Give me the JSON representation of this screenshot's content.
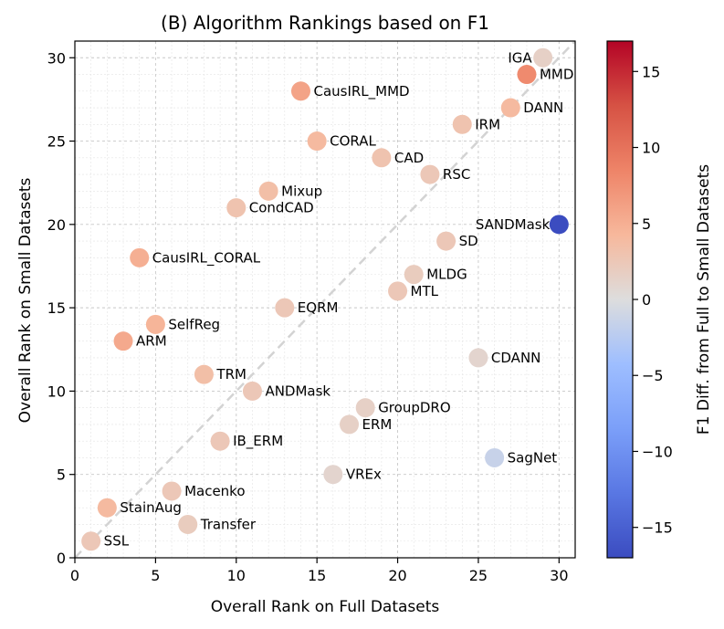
{
  "chart_data": {
    "type": "scatter",
    "title": "(B) Algorithm Rankings based on F1",
    "xlabel": "Overall Rank on Full Datasets",
    "ylabel": "Overall Rank on Small Datasets",
    "colorbar_label": "F1 Diff. from Full to Small Datasets",
    "xlim": [
      0,
      31
    ],
    "ylim": [
      0,
      31
    ],
    "xticks": [
      0,
      5,
      10,
      15,
      20,
      25,
      30
    ],
    "yticks": [
      0,
      5,
      10,
      15,
      20,
      25,
      30
    ],
    "colorbar_range": [
      -17,
      17
    ],
    "colorbar_ticks": [
      -15,
      -10,
      -5,
      0,
      5,
      10,
      15
    ],
    "colorbar_tick_labels": [
      "−15",
      "−10",
      "−5",
      "0",
      "5",
      "10",
      "15"
    ],
    "reference_line": "y = x (dashed, light gray)",
    "grid": true,
    "points": [
      {
        "name": "IGA",
        "x": 29,
        "y": 30,
        "diff": 1.5,
        "label_side": "left"
      },
      {
        "name": "MMD",
        "x": 28,
        "y": 29,
        "diff": 8,
        "label_side": "right"
      },
      {
        "name": "DANN",
        "x": 27,
        "y": 27,
        "diff": 4,
        "label_side": "right"
      },
      {
        "name": "IRM",
        "x": 24,
        "y": 26,
        "diff": 3,
        "label_side": "right"
      },
      {
        "name": "CausIRL_MMD",
        "x": 14,
        "y": 28,
        "diff": 6,
        "label_side": "right"
      },
      {
        "name": "CORAL",
        "x": 15,
        "y": 25,
        "diff": 4,
        "label_side": "right"
      },
      {
        "name": "CAD",
        "x": 19,
        "y": 24,
        "diff": 3,
        "label_side": "right"
      },
      {
        "name": "RSC",
        "x": 22,
        "y": 23,
        "diff": 2.5,
        "label_side": "right"
      },
      {
        "name": "Mixup",
        "x": 12,
        "y": 22,
        "diff": 3.5,
        "label_side": "right"
      },
      {
        "name": "CondCAD",
        "x": 10,
        "y": 21,
        "diff": 3,
        "label_side": "right"
      },
      {
        "name": "SANDMask",
        "x": 30,
        "y": 20,
        "diff": -17,
        "label_side": "left-above"
      },
      {
        "name": "SD",
        "x": 23,
        "y": 19,
        "diff": 2.5,
        "label_side": "right"
      },
      {
        "name": "CausIRL_CORAL",
        "x": 4,
        "y": 18,
        "diff": 5,
        "label_side": "right"
      },
      {
        "name": "MLDG",
        "x": 21,
        "y": 17,
        "diff": 2,
        "label_side": "right"
      },
      {
        "name": "MTL",
        "x": 20,
        "y": 16,
        "diff": 2.5,
        "label_side": "right"
      },
      {
        "name": "EQRM",
        "x": 13,
        "y": 15,
        "diff": 2.5,
        "label_side": "right"
      },
      {
        "name": "SelfReg",
        "x": 5,
        "y": 14,
        "diff": 4.5,
        "label_side": "right"
      },
      {
        "name": "ARM",
        "x": 3,
        "y": 13,
        "diff": 5.5,
        "label_side": "right"
      },
      {
        "name": "CDANN",
        "x": 25,
        "y": 12,
        "diff": 1,
        "label_side": "right"
      },
      {
        "name": "TRM",
        "x": 8,
        "y": 11,
        "diff": 3.5,
        "label_side": "right"
      },
      {
        "name": "ANDMask",
        "x": 11,
        "y": 10,
        "diff": 2.5,
        "label_side": "right"
      },
      {
        "name": "GroupDRO",
        "x": 18,
        "y": 9,
        "diff": 1.5,
        "label_side": "right"
      },
      {
        "name": "ERM",
        "x": 17,
        "y": 8,
        "diff": 1.5,
        "label_side": "right"
      },
      {
        "name": "IB_ERM",
        "x": 9,
        "y": 7,
        "diff": 2.5,
        "label_side": "right"
      },
      {
        "name": "SagNet",
        "x": 26,
        "y": 6,
        "diff": -1.5,
        "label_side": "right"
      },
      {
        "name": "VREx",
        "x": 16,
        "y": 5,
        "diff": 1,
        "label_side": "right"
      },
      {
        "name": "Macenko",
        "x": 6,
        "y": 4,
        "diff": 2.5,
        "label_side": "right"
      },
      {
        "name": "StainAug",
        "x": 2,
        "y": 3,
        "diff": 4,
        "label_side": "right"
      },
      {
        "name": "Transfer",
        "x": 7,
        "y": 2,
        "diff": 2,
        "label_side": "right"
      },
      {
        "name": "SSL",
        "x": 1,
        "y": 1,
        "diff": 2.5,
        "label_side": "right"
      }
    ]
  }
}
